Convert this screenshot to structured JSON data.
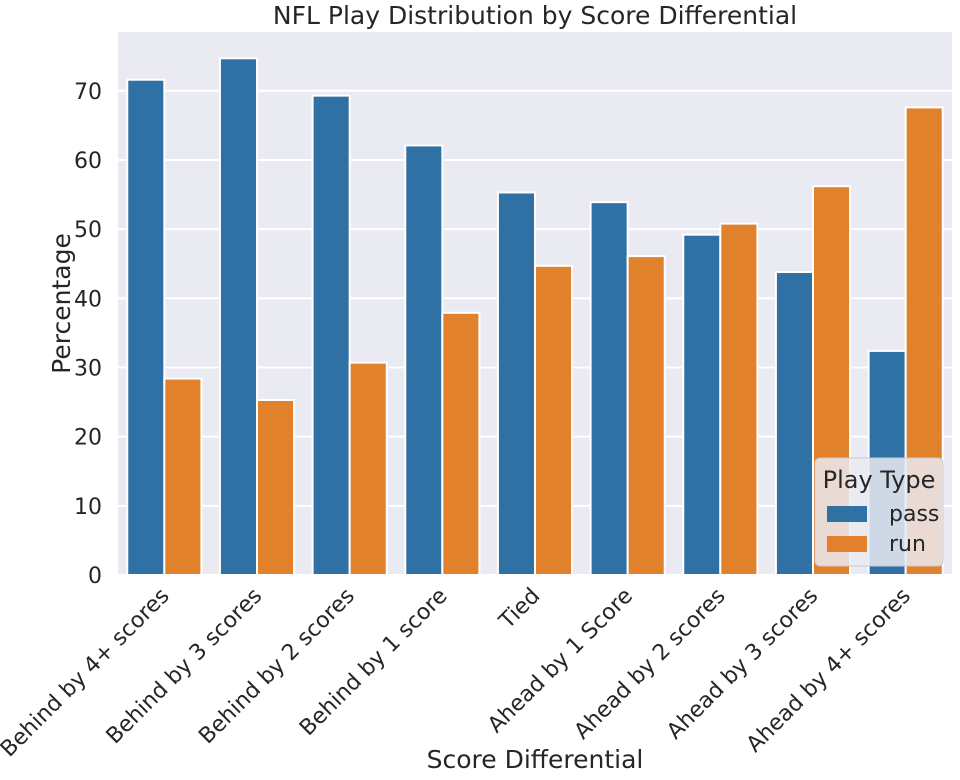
{
  "chart_data": {
    "type": "bar",
    "title": "NFL Play Distribution by Score Differential",
    "xlabel": "Score Differential",
    "ylabel": "Percentage",
    "categories": [
      "Behind by 4+ scores",
      "Behind by 3 scores",
      "Behind by 2 scores",
      "Behind by 1 score",
      "Tied",
      "Ahead by 1 Score",
      "Ahead by 2 scores",
      "Ahead by 3 scores",
      "Ahead by 4+ scores"
    ],
    "series": [
      {
        "name": "pass",
        "color": "#2f71a4",
        "values": [
          71.6,
          74.7,
          69.3,
          62.1,
          55.3,
          53.9,
          49.2,
          43.8,
          32.4
        ]
      },
      {
        "name": "run",
        "color": "#e2812c",
        "values": [
          28.4,
          25.3,
          30.7,
          37.9,
          44.7,
          46.1,
          50.8,
          56.2,
          67.6
        ]
      }
    ],
    "ylim": [
      0,
      78.5
    ],
    "yticks": [
      0,
      10,
      20,
      30,
      40,
      50,
      60,
      70
    ],
    "grid": true,
    "legend": {
      "title": "Play Type",
      "position": "lower-right"
    },
    "colors": {
      "plot_background": "#eaeaf2",
      "grid": "#ffffff"
    }
  }
}
